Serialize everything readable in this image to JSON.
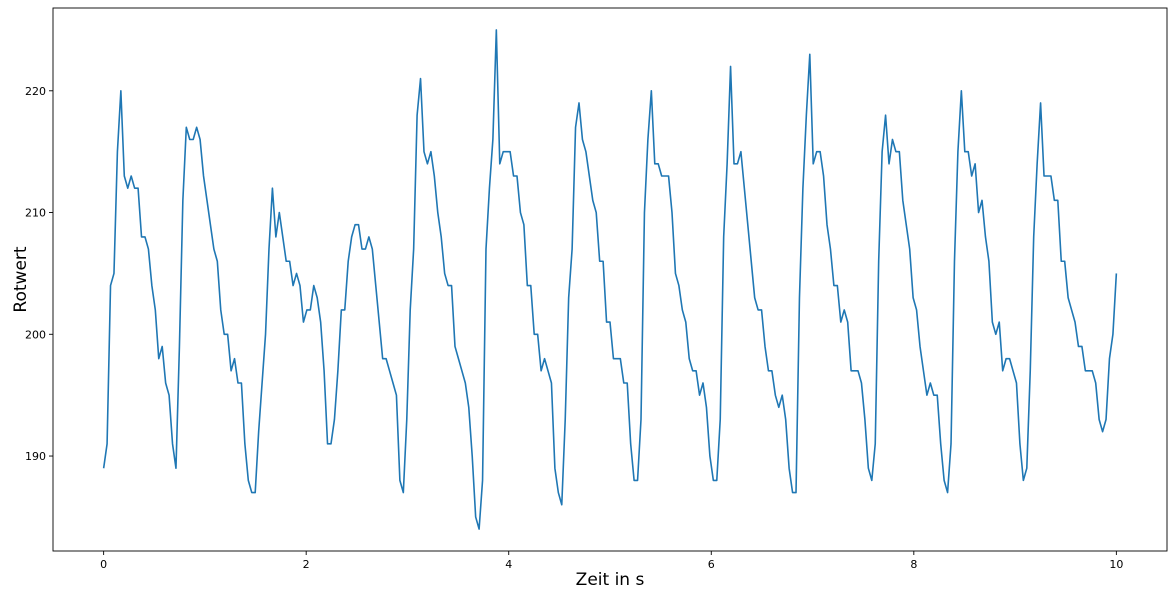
{
  "chart_data": {
    "type": "line",
    "title": "",
    "xlabel": "Zeit in s",
    "ylabel": "Rotwert",
    "xlim": [
      -0.5,
      10.5
    ],
    "ylim": [
      182.2,
      226.8
    ],
    "xticks": [
      0,
      2,
      4,
      6,
      8,
      10
    ],
    "xtick_labels": [
      "0",
      "2",
      "4",
      "6",
      "8",
      "10"
    ],
    "yticks": [
      190,
      200,
      210,
      220
    ],
    "ytick_labels": [
      "190",
      "200",
      "210",
      "220"
    ],
    "grid": false,
    "legend": "none",
    "color": "#1f77b4",
    "series": [
      {
        "x_start": 0,
        "x_end": 10,
        "values": [
          189,
          191,
          204,
          205,
          215,
          220,
          213,
          212,
          213,
          212,
          212,
          208,
          208,
          207,
          204,
          202,
          198,
          199,
          196,
          195,
          191,
          189,
          199,
          211,
          217,
          216,
          216,
          217,
          216,
          213,
          211,
          209,
          207,
          206,
          202,
          200,
          200,
          197,
          198,
          196,
          196,
          191,
          188,
          187,
          187,
          192,
          196,
          200,
          207,
          212,
          208,
          210,
          208,
          206,
          206,
          204,
          205,
          204,
          201,
          202,
          202,
          204,
          203,
          201,
          197,
          191,
          191,
          193,
          197,
          202,
          202,
          206,
          208,
          209,
          209,
          207,
          207,
          208,
          207,
          204,
          201,
          198,
          198,
          197,
          196,
          195,
          188,
          187,
          193,
          202,
          207,
          218,
          221,
          215,
          214,
          215,
          213,
          210,
          208,
          205,
          204,
          204,
          199,
          198,
          197,
          196,
          194,
          190,
          185,
          184,
          188,
          207,
          212,
          216,
          225,
          214,
          215,
          215,
          215,
          213,
          213,
          210,
          209,
          204,
          204,
          200,
          200,
          197,
          198,
          197,
          196,
          189,
          187,
          186,
          193,
          203,
          207,
          217,
          219,
          216,
          215,
          213,
          211,
          210,
          206,
          206,
          201,
          201,
          198,
          198,
          198,
          196,
          196,
          191,
          188,
          188,
          193,
          210,
          216,
          220,
          214,
          214,
          213,
          213,
          213,
          210,
          205,
          204,
          202,
          201,
          198,
          197,
          197,
          195,
          196,
          194,
          190,
          188,
          188,
          193,
          208,
          214,
          222,
          214,
          214,
          215,
          212,
          209,
          206,
          203,
          202,
          202,
          199,
          197,
          197,
          195,
          194,
          195,
          193,
          189,
          187,
          187,
          203,
          212,
          218,
          223,
          214,
          215,
          215,
          213,
          209,
          207,
          204,
          204,
          201,
          202,
          201,
          197,
          197,
          197,
          196,
          193,
          189,
          188,
          191,
          206,
          215,
          218,
          214,
          216,
          215,
          215,
          211,
          209,
          207,
          203,
          202,
          199,
          197,
          195,
          196,
          195,
          195,
          191,
          188,
          187,
          191,
          206,
          215,
          220,
          215,
          215,
          213,
          214,
          210,
          211,
          208,
          206,
          201,
          200,
          201,
          197,
          198,
          198,
          197,
          196,
          191,
          188,
          189,
          197,
          208,
          214,
          219,
          213,
          213,
          213,
          211,
          211,
          206,
          206,
          203,
          202,
          201,
          199,
          199,
          197,
          197,
          197,
          196,
          193,
          192,
          193,
          198,
          200,
          205
        ]
      }
    ]
  }
}
